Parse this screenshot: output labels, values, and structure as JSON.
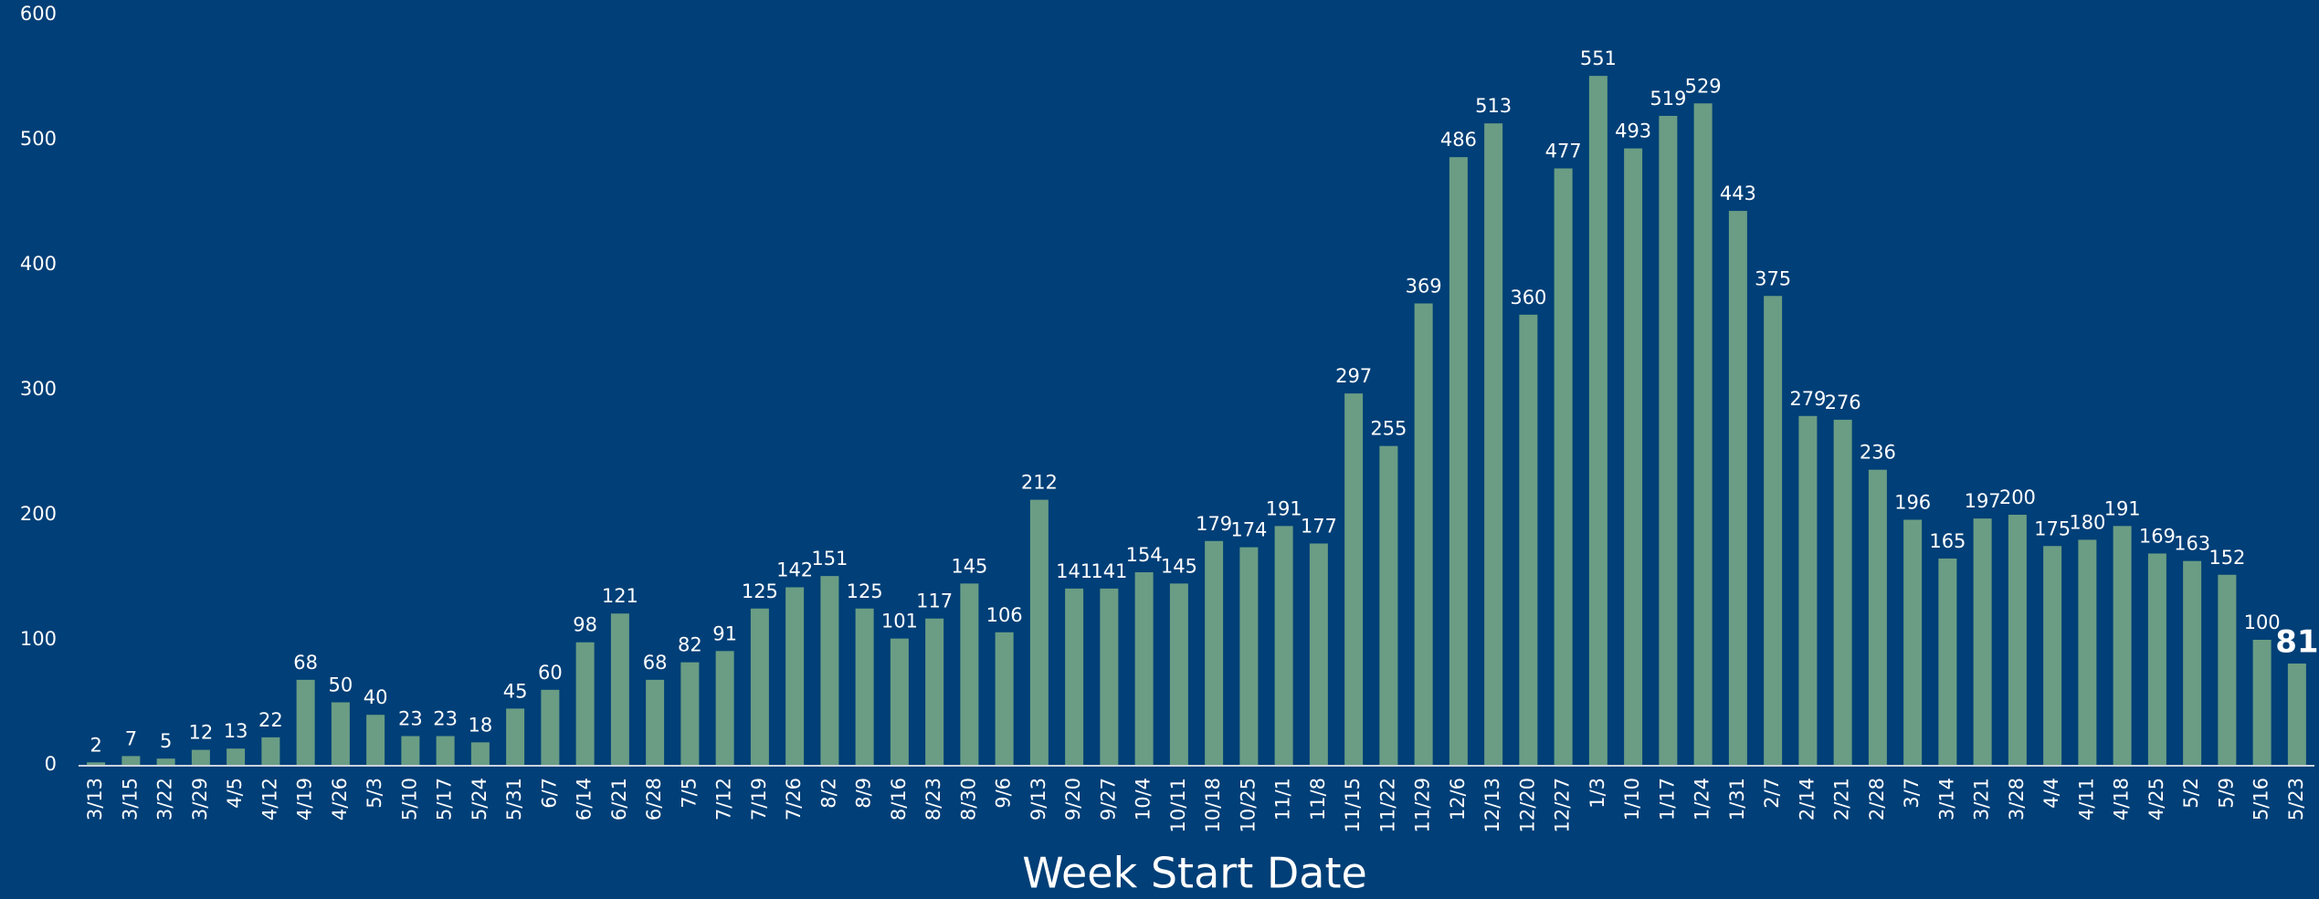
{
  "chart_data": {
    "type": "bar",
    "x_label": "Week Start Date",
    "categories": [
      "3/13",
      "3/15",
      "3/22",
      "3/29",
      "4/5",
      "4/12",
      "4/19",
      "4/26",
      "5/3",
      "5/10",
      "5/17",
      "5/24",
      "5/31",
      "6/7",
      "6/14",
      "6/21",
      "6/28",
      "7/5",
      "7/12",
      "7/19",
      "7/26",
      "8/2",
      "8/9",
      "8/16",
      "8/23",
      "8/30",
      "9/6",
      "9/13",
      "9/20",
      "9/27",
      "10/4",
      "10/11",
      "10/18",
      "10/25",
      "11/1",
      "11/8",
      "11/15",
      "11/22",
      "11/29",
      "12/6",
      "12/13",
      "12/20",
      "12/27",
      "1/3",
      "1/10",
      "1/17",
      "1/24",
      "1/31",
      "2/7",
      "2/14",
      "2/21",
      "2/28",
      "3/7",
      "3/14",
      "3/21",
      "3/28",
      "4/4",
      "4/11",
      "4/18",
      "4/25",
      "5/2",
      "5/9",
      "5/16",
      "5/23"
    ],
    "values": [
      2,
      7,
      5,
      12,
      13,
      22,
      68,
      50,
      40,
      23,
      23,
      18,
      45,
      60,
      98,
      121,
      68,
      82,
      91,
      125,
      142,
      151,
      125,
      101,
      117,
      145,
      106,
      212,
      141,
      141,
      154,
      145,
      179,
      174,
      191,
      177,
      297,
      255,
      369,
      486,
      513,
      360,
      477,
      551,
      493,
      519,
      529,
      443,
      375,
      279,
      276,
      236,
      196,
      165,
      197,
      200,
      175,
      180,
      191,
      169,
      163,
      152,
      100,
      81
    ],
    "color": "#6a9d84",
    "ylim": [
      0,
      600
    ],
    "yticks": [
      0,
      100,
      200,
      300,
      400,
      500,
      600
    ],
    "grid": false
  }
}
